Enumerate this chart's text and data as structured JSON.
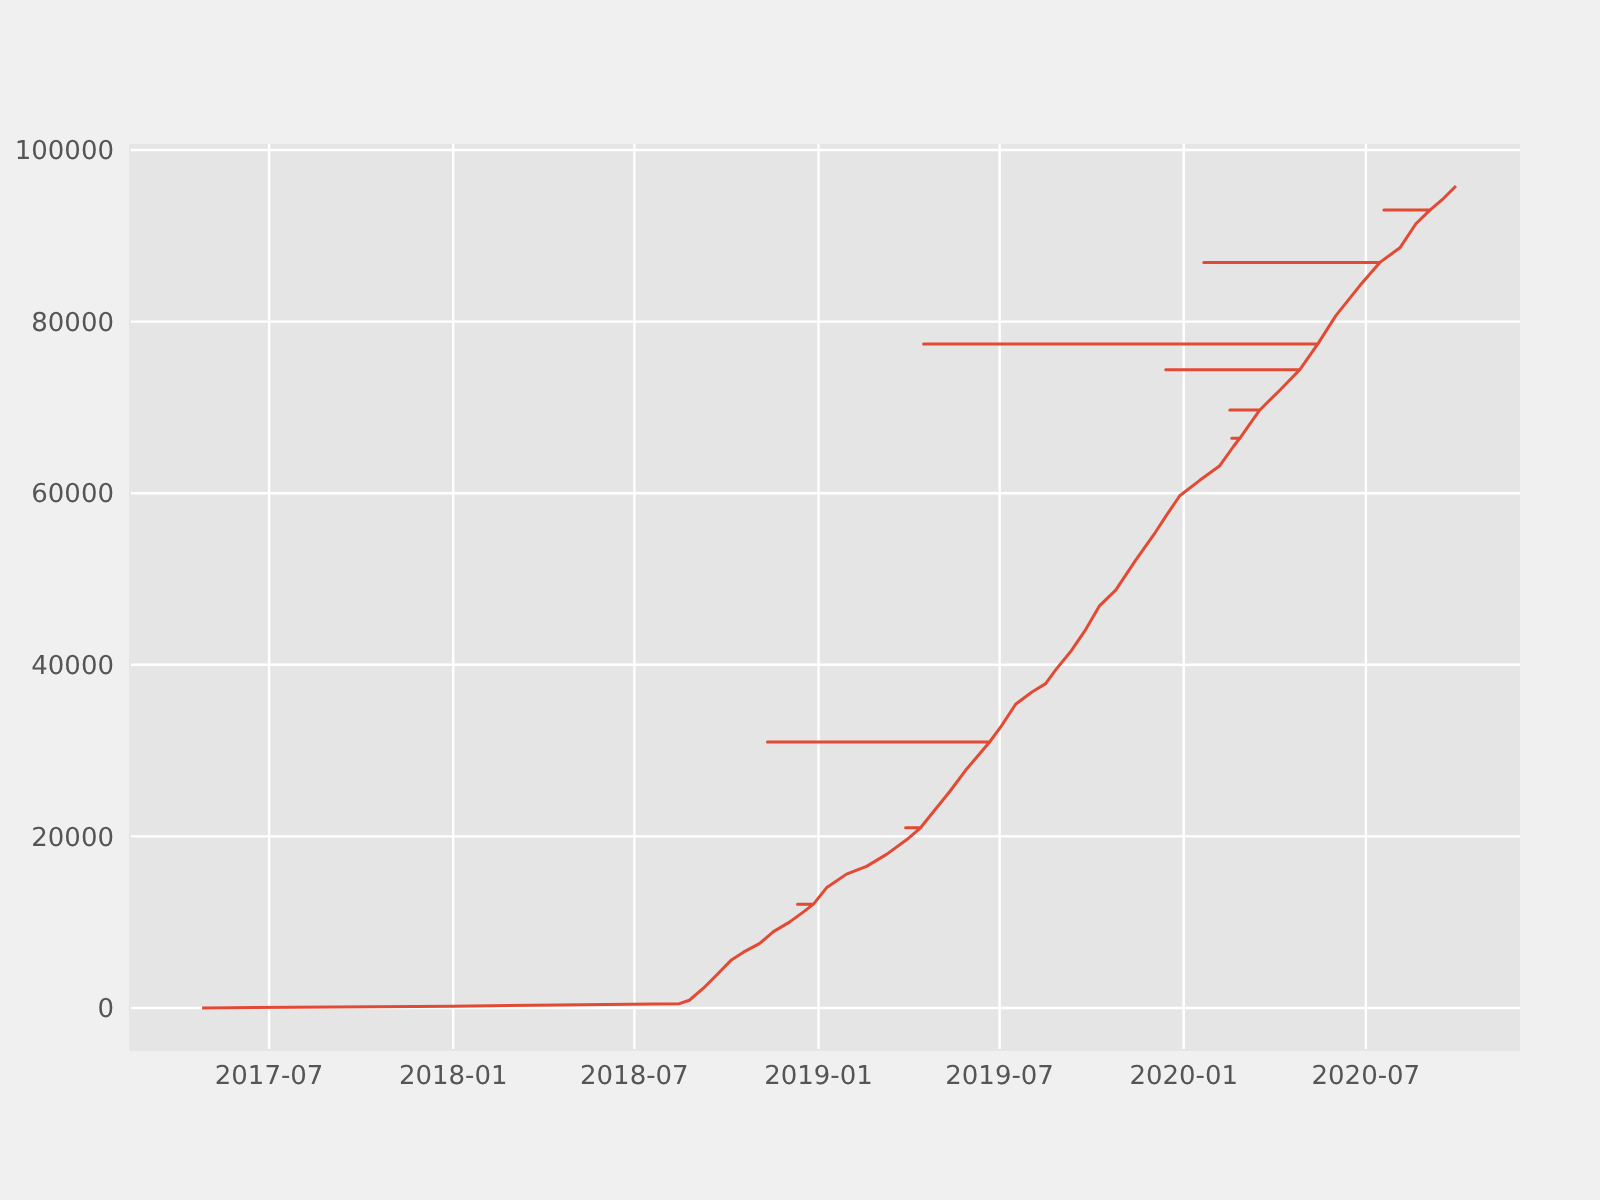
{
  "chart_data": {
    "type": "line",
    "x": [
      "2017-04-25",
      "2018-01-01",
      "2018-08-15",
      "2018-08-25",
      "2018-09-08",
      "2018-09-20",
      "2018-10-06",
      "2018-10-18",
      "2018-11-03",
      "2018-11-17",
      "2018-12-03",
      "2018-12-17",
      "2018-12-27",
      "2018-12-11",
      "2018-12-27",
      "2019-01-09",
      "2019-01-29",
      "2019-02-18",
      "2019-03-10",
      "2019-03-30",
      "2019-04-13",
      "2019-03-29",
      "2019-04-13",
      "2019-04-24",
      "2019-05-12",
      "2019-05-28",
      "2019-06-21",
      "2018-11-11",
      "2019-06-21",
      "2019-07-03",
      "2019-07-17",
      "2019-08-02",
      "2019-08-16",
      "2019-08-26",
      "2019-09-11",
      "2019-09-25",
      "2019-10-09",
      "2019-10-25",
      "2019-11-14",
      "2019-12-04",
      "2019-12-14",
      "2019-12-28",
      "2020-01-17",
      "2020-02-06",
      "2020-02-20",
      "2020-02-26",
      "2020-02-18",
      "2020-02-26",
      "2020-03-17",
      "2020-02-16",
      "2020-03-17",
      "2020-04-06",
      "2020-04-26",
      "2019-12-14",
      "2020-04-26",
      "2020-05-14",
      "2019-04-16",
      "2020-05-14",
      "2020-06-01",
      "2020-06-25",
      "2020-07-15",
      "2020-01-21",
      "2020-07-15",
      "2020-08-04",
      "2020-08-20",
      "2020-09-03",
      "2020-07-19",
      "2020-09-03",
      "2020-09-17",
      "2020-09-29"
    ],
    "series": [
      {
        "color": "#e24a33",
        "values": [
          0,
          200,
          500,
          900,
          2300,
          3700,
          5600,
          6500,
          7500,
          8900,
          10000,
          11200,
          12100,
          12100,
          12100,
          14000,
          15600,
          16500,
          17900,
          19600,
          21000,
          21000,
          21000,
          22600,
          25200,
          27700,
          31000,
          31000,
          31000,
          32900,
          35400,
          36800,
          37800,
          39400,
          41700,
          44100,
          46900,
          48700,
          52200,
          55500,
          57300,
          59700,
          61500,
          63200,
          65500,
          66400,
          66400,
          66400,
          69700,
          69700,
          69700,
          72000,
          74400,
          74400,
          74400,
          77400,
          77400,
          77400,
          80700,
          84200,
          86900,
          86900,
          86900,
          88600,
          91400,
          93000,
          93000,
          93000,
          94400,
          95800
        ]
      }
    ],
    "xlim": [
      "2017-02-12",
      "2020-12-02"
    ],
    "xticks": [
      "2017-07",
      "2018-01",
      "2018-07",
      "2019-01",
      "2019-07",
      "2020-01",
      "2020-07"
    ],
    "ylim": [
      -4900,
      100700
    ],
    "yticks": [
      0,
      20000,
      40000,
      60000,
      80000,
      100000
    ],
    "grid": true,
    "marker": "none",
    "line_style": "solid"
  }
}
